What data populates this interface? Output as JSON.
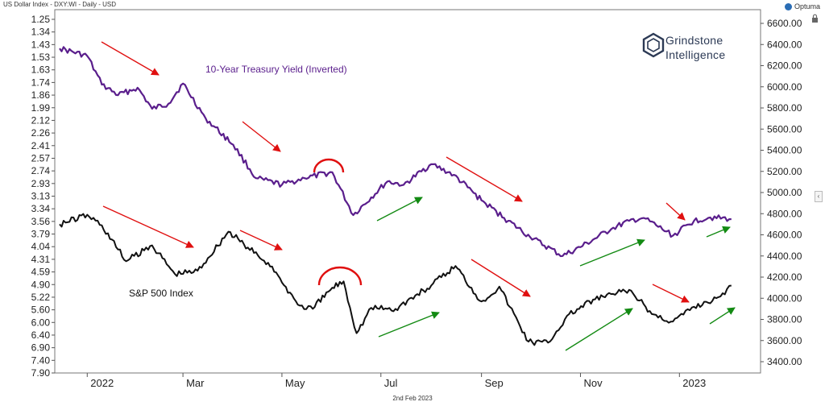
{
  "header": {
    "title": "US Dollar Index - DXY:WI - Daily - USD",
    "brand": "Optuma",
    "date_footer": "2nd Feb 2023"
  },
  "logo": {
    "line1": "Grindstone",
    "line2": "Intelligence"
  },
  "colors": {
    "yield": "#5a1e8c",
    "spx": "#111111",
    "red_arrow": "#e01010",
    "green_arrow": "#138a13"
  },
  "chart_data": {
    "type": "line",
    "title": "US Dollar Index - DXY:WI - Daily - USD",
    "x_tick_labels": [
      "2022",
      "Mar",
      "May",
      "Jul",
      "Sep",
      "Nov",
      "2023"
    ],
    "left_axis": {
      "label": "",
      "scale": "inverted",
      "ticks": [
        "1.25",
        "1.34",
        "1.43",
        "1.53",
        "1.63",
        "1.74",
        "1.86",
        "1.99",
        "2.12",
        "2.26",
        "2.41",
        "2.57",
        "2.74",
        "2.93",
        "3.13",
        "3.34",
        "3.56",
        "3.79",
        "4.04",
        "4.31",
        "4.59",
        "4.90",
        "5.22",
        "5.60",
        "6.00",
        "6.40",
        "6.90",
        "7.40",
        "7.90"
      ]
    },
    "right_axis": {
      "label": "",
      "ticks": [
        "6600.00",
        "6400.00",
        "6200.00",
        "6000.00",
        "5800.00",
        "5600.00",
        "5400.00",
        "5200.00",
        "5000.00",
        "4800.00",
        "4600.00",
        "4400.00",
        "4200.00",
        "4000.00",
        "3800.00",
        "3600.00",
        "3400.00"
      ],
      "range": [
        3400,
        6600
      ]
    },
    "grid": false,
    "series": [
      {
        "name": "10-Year Treasury Yield (Inverted)",
        "axis": "left",
        "points": [
          [
            "2021-12-15",
            1.46
          ],
          [
            "2022-01-01",
            1.52
          ],
          [
            "2022-01-10",
            1.76
          ],
          [
            "2022-01-20",
            1.86
          ],
          [
            "2022-02-01",
            1.79
          ],
          [
            "2022-02-10",
            2.0
          ],
          [
            "2022-02-20",
            1.95
          ],
          [
            "2022-03-01",
            1.75
          ],
          [
            "2022-03-15",
            2.1
          ],
          [
            "2022-04-01",
            2.4
          ],
          [
            "2022-04-15",
            2.85
          ],
          [
            "2022-05-01",
            2.95
          ],
          [
            "2022-05-15",
            2.85
          ],
          [
            "2022-06-01",
            2.76
          ],
          [
            "2022-06-14",
            3.45
          ],
          [
            "2022-06-25",
            3.15
          ],
          [
            "2022-07-05",
            2.9
          ],
          [
            "2022-07-15",
            2.95
          ],
          [
            "2022-08-01",
            2.65
          ],
          [
            "2022-08-15",
            2.8
          ],
          [
            "2022-09-01",
            3.2
          ],
          [
            "2022-09-15",
            3.5
          ],
          [
            "2022-10-01",
            3.85
          ],
          [
            "2022-10-21",
            4.24
          ],
          [
            "2022-11-01",
            4.05
          ],
          [
            "2022-11-20",
            3.7
          ],
          [
            "2022-12-01",
            3.55
          ],
          [
            "2022-12-10",
            3.5
          ],
          [
            "2022-12-28",
            3.82
          ],
          [
            "2023-01-10",
            3.55
          ],
          [
            "2023-01-20",
            3.49
          ],
          [
            "2023-02-02",
            3.52
          ]
        ]
      },
      {
        "name": "S&P 500 Index",
        "axis": "right",
        "points": [
          [
            "2021-12-15",
            4700
          ],
          [
            "2022-01-01",
            4790
          ],
          [
            "2022-01-10",
            4690
          ],
          [
            "2022-01-25",
            4350
          ],
          [
            "2022-02-10",
            4500
          ],
          [
            "2022-02-24",
            4230
          ],
          [
            "2022-03-10",
            4260
          ],
          [
            "2022-03-29",
            4630
          ],
          [
            "2022-04-10",
            4480
          ],
          [
            "2022-04-25",
            4300
          ],
          [
            "2022-05-01",
            4150
          ],
          [
            "2022-05-12",
            3930
          ],
          [
            "2022-05-20",
            3900
          ],
          [
            "2022-06-01",
            4100
          ],
          [
            "2022-06-08",
            4160
          ],
          [
            "2022-06-16",
            3670
          ],
          [
            "2022-06-25",
            3910
          ],
          [
            "2022-07-10",
            3900
          ],
          [
            "2022-08-01",
            4120
          ],
          [
            "2022-08-16",
            4305
          ],
          [
            "2022-09-01",
            3970
          ],
          [
            "2022-09-12",
            4110
          ],
          [
            "2022-09-30",
            3590
          ],
          [
            "2022-10-12",
            3580
          ],
          [
            "2022-10-25",
            3850
          ],
          [
            "2022-11-10",
            3990
          ],
          [
            "2022-12-01",
            4080
          ],
          [
            "2022-12-15",
            3850
          ],
          [
            "2022-12-28",
            3780
          ],
          [
            "2023-01-10",
            3920
          ],
          [
            "2023-01-25",
            4010
          ],
          [
            "2023-02-02",
            4120
          ]
        ]
      }
    ],
    "annotations": [
      {
        "type": "arrow",
        "color": "red",
        "note": "Yield down-trend Jan"
      },
      {
        "type": "arrow",
        "color": "red",
        "note": "Yield down-trend Apr"
      },
      {
        "type": "arc",
        "color": "red",
        "note": "Yield hump May"
      },
      {
        "type": "arrow",
        "color": "green",
        "note": "Yield up-trend Jun-Jul"
      },
      {
        "type": "arrow",
        "color": "red",
        "note": "Yield down-trend Aug-Sep"
      },
      {
        "type": "arrow",
        "color": "green",
        "note": "Yield up-trend Nov"
      },
      {
        "type": "arrow",
        "color": "red",
        "note": "Yield down Dec"
      },
      {
        "type": "arrow",
        "color": "green",
        "note": "Yield up Jan"
      },
      {
        "type": "arrow",
        "color": "red",
        "note": "SPX down Jan"
      },
      {
        "type": "arrow",
        "color": "red",
        "note": "SPX down Apr"
      },
      {
        "type": "arc",
        "color": "red",
        "note": "SPX hump May"
      },
      {
        "type": "arrow",
        "color": "green",
        "note": "SPX up Jun-Jul"
      },
      {
        "type": "arrow",
        "color": "red",
        "note": "SPX down Aug-Sep"
      },
      {
        "type": "arrow",
        "color": "green",
        "note": "SPX up Oct-Nov"
      },
      {
        "type": "arrow",
        "color": "red",
        "note": "SPX down Dec"
      },
      {
        "type": "arrow",
        "color": "green",
        "note": "SPX up Jan"
      }
    ]
  }
}
